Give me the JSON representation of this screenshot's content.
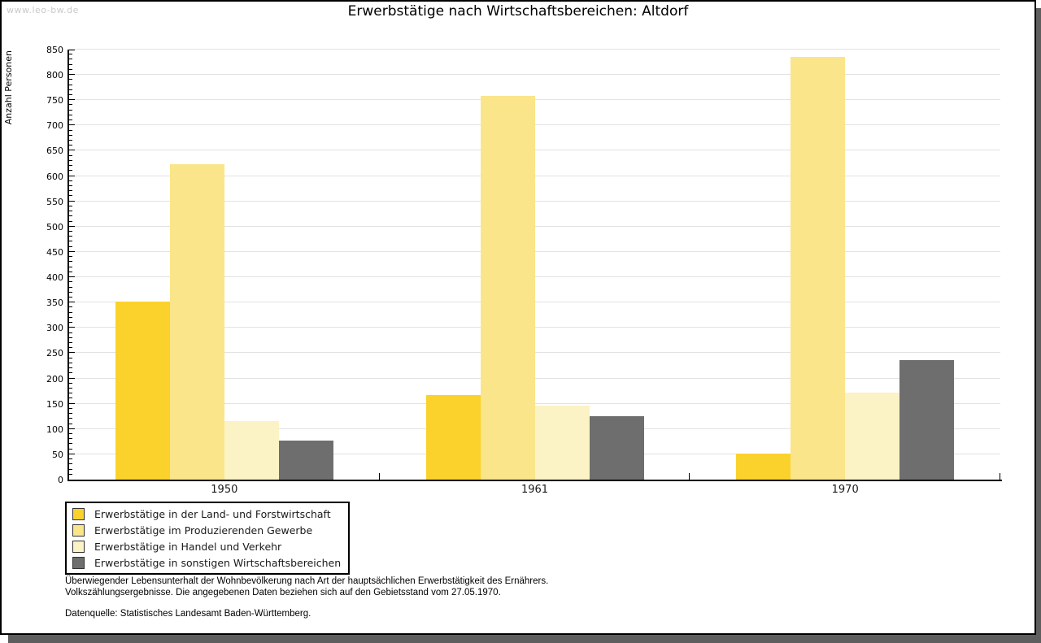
{
  "watermark": "www.leo-bw.de",
  "chart_data": {
    "type": "bar",
    "title": "Erwerbstätige nach Wirtschaftsbereichen: Altdorf",
    "ylabel": "Anzahl Personen",
    "xlabel": "",
    "categories": [
      "1950",
      "1961",
      "1970"
    ],
    "series": [
      {
        "id": "land-und-forstwirtschaft",
        "name": "Erwerbstätige in der Land- und Forstwirtschaft",
        "color": "#FBD22C",
        "values": [
          352,
          167,
          51
        ]
      },
      {
        "id": "produzierendes-gewerbe",
        "name": "Erwerbstätige im Produzierenden Gewerbe",
        "color": "#FBE58A",
        "values": [
          623,
          759,
          836
        ]
      },
      {
        "id": "handel-und-verkehr",
        "name": "Erwerbstätige in Handel und Verkehr",
        "color": "#FBF3C5",
        "values": [
          115,
          147,
          172
        ]
      },
      {
        "id": "sonstige-wirtschaftsbereiche",
        "name": "Erwerbstätige in sonstigen Wirtschaftsbereichen",
        "color": "#6E6E6E",
        "values": [
          77,
          126,
          236
        ]
      }
    ],
    "ylim": [
      0,
      850
    ],
    "y_major_step": 50,
    "y_minor_step": 10,
    "grid": true,
    "legend_position": "bottom-left"
  },
  "footnotes": {
    "line1": "Überwiegender Lebensunterhalt der Wohnbevölkerung nach Art der hauptsächlichen Erwerbstätigkeit des Ernährers.",
    "line2": "Volkszählungsergebnisse. Die angegebenen Daten beziehen sich auf den Gebietsstand vom 27.05.1970.",
    "source": "Datenquelle: Statistisches Landesamt Baden-Württemberg."
  }
}
